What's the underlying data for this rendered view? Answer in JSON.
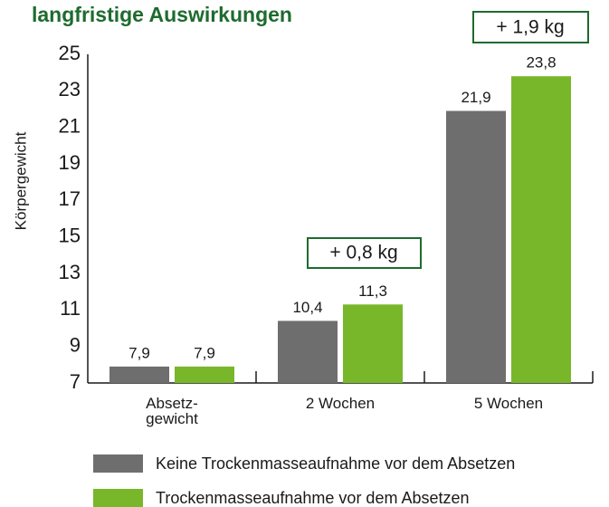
{
  "chart_data": {
    "type": "bar",
    "title": "langfristige Auswirkungen",
    "y_label": "Körpergewicht",
    "categories": [
      "Absetz-\ngewicht",
      "2 Wochen",
      "5 Wochen"
    ],
    "series": [
      {
        "name": "Keine Trockenmasseaufnahme vor dem Absetzen",
        "color": "#6e6e6e",
        "values": [
          7.9,
          10.4,
          21.9
        ],
        "value_labels": [
          "7,9",
          "10,4",
          "21,9"
        ]
      },
      {
        "name": "Trockenmasseaufnahme vor dem Absetzen",
        "color": "#78b72a",
        "values": [
          7.9,
          11.3,
          23.8
        ],
        "value_labels": [
          "7,9",
          "11,3",
          "23,8"
        ]
      }
    ],
    "annotations": [
      "+ 0,8 kg",
      "+ 1,9 kg"
    ],
    "ylim": [
      7,
      25
    ],
    "yticks": [
      7,
      9,
      11,
      13,
      15,
      17,
      19,
      21,
      23,
      25
    ],
    "grid": false
  }
}
